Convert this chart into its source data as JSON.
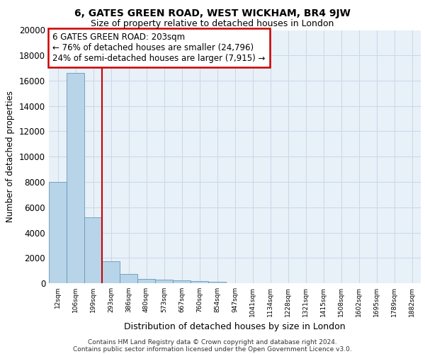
{
  "title": "6, GATES GREEN ROAD, WEST WICKHAM, BR4 9JW",
  "subtitle": "Size of property relative to detached houses in London",
  "xlabel": "Distribution of detached houses by size in London",
  "ylabel": "Number of detached properties",
  "categories": [
    "12sqm",
    "106sqm",
    "199sqm",
    "293sqm",
    "386sqm",
    "480sqm",
    "573sqm",
    "667sqm",
    "760sqm",
    "854sqm",
    "947sqm",
    "1041sqm",
    "1134sqm",
    "1228sqm",
    "1321sqm",
    "1415sqm",
    "1508sqm",
    "1602sqm",
    "1695sqm",
    "1789sqm",
    "1882sqm"
  ],
  "bar_values": [
    8000,
    16600,
    5200,
    1750,
    700,
    350,
    270,
    200,
    150,
    100,
    0,
    0,
    0,
    0,
    0,
    0,
    0,
    0,
    0,
    0,
    0
  ],
  "bar_color": "#b8d4e8",
  "bar_edge_color": "#6699bb",
  "property_line_index": 2,
  "property_line_color": "#cc0000",
  "annotation_text": "6 GATES GREEN ROAD: 203sqm\n← 76% of detached houses are smaller (24,796)\n24% of semi-detached houses are larger (7,915) →",
  "annotation_box_color": "#ffffff",
  "annotation_box_edge": "#cc0000",
  "ylim": [
    0,
    20000
  ],
  "yticks": [
    0,
    2000,
    4000,
    6000,
    8000,
    10000,
    12000,
    14000,
    16000,
    18000,
    20000
  ],
  "grid_color": "#c8d8e8",
  "background_color": "#e8f0f8",
  "footer_line1": "Contains HM Land Registry data © Crown copyright and database right 2024.",
  "footer_line2": "Contains public sector information licensed under the Open Government Licence v3.0."
}
